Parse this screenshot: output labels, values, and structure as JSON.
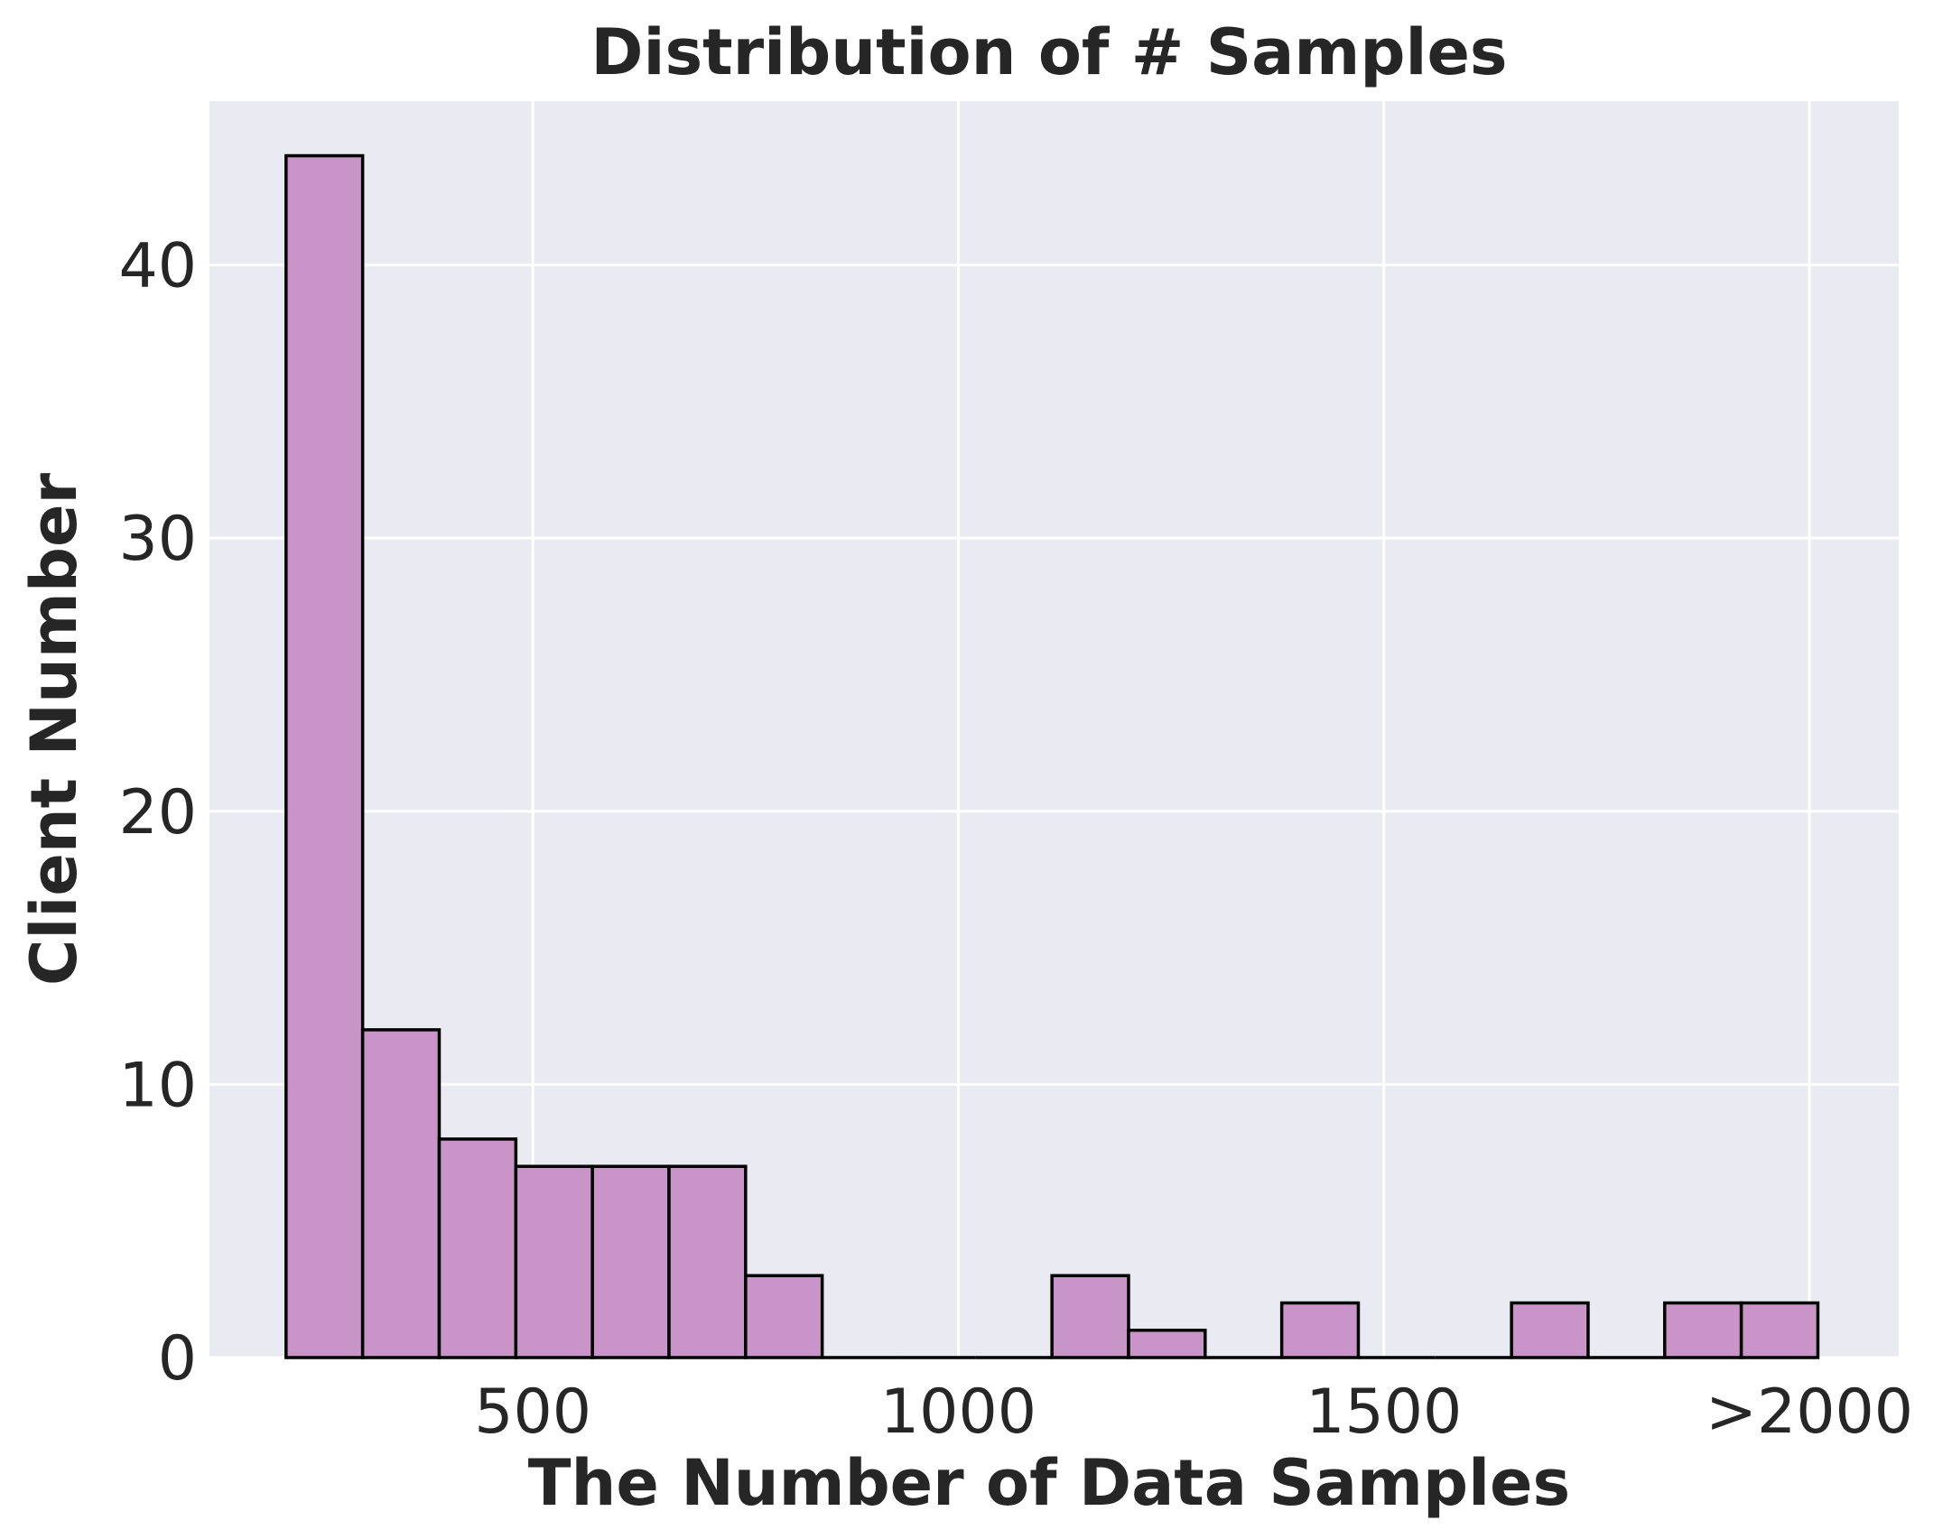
{
  "chart_data": {
    "type": "bar",
    "title": "Distribution of # Samples",
    "xlabel": "The Number of Data Samples",
    "ylabel": "Client Number",
    "xlim": [
      120,
      2105
    ],
    "ylim": [
      0,
      46
    ],
    "grid": true,
    "legend": "none",
    "bar_color": "#c994c7",
    "edge_color": "#000000",
    "background_color": "#eaeaf2",
    "x_ticks": [
      {
        "value": 500,
        "label": "500"
      },
      {
        "value": 1000,
        "label": "1000"
      },
      {
        "value": 1500,
        "label": "1500"
      },
      {
        "value": 2000,
        "label": ">2000"
      }
    ],
    "y_ticks": [
      {
        "value": 0,
        "label": "0"
      },
      {
        "value": 10,
        "label": "10"
      },
      {
        "value": 20,
        "label": "20"
      },
      {
        "value": 30,
        "label": "30"
      },
      {
        "value": 40,
        "label": "40"
      }
    ],
    "bin_edges": [
      210,
      300,
      390,
      480,
      570,
      660,
      750,
      840,
      930,
      1020,
      1110,
      1200,
      1290,
      1380,
      1470,
      1560,
      1650,
      1740,
      1830,
      1920,
      2010
    ],
    "values": [
      44,
      12,
      8,
      7,
      7,
      7,
      3,
      0,
      0,
      0,
      3,
      1,
      0,
      2,
      0,
      0,
      2,
      0,
      2,
      2
    ]
  }
}
